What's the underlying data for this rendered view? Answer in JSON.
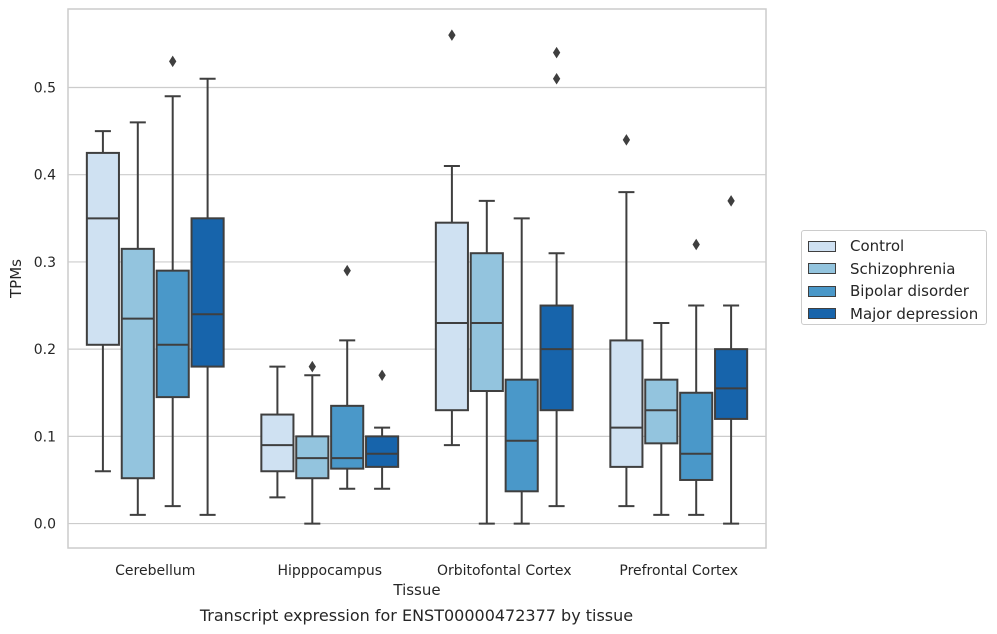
{
  "chart_data": {
    "type": "box",
    "title": "",
    "caption": "Transcript expression for ENST00000472377 by tissue",
    "xlabel": "Tissue",
    "ylabel": "TPMs",
    "ylim": [
      -0.028,
      0.59
    ],
    "yticks": [
      "0.0",
      "0.1",
      "0.2",
      "0.3",
      "0.4",
      "0.5"
    ],
    "grid": "horizontal",
    "legend_position": "right",
    "categories": [
      "Cerebellum",
      "Hipppocampus",
      "Orbitofontal Cortex",
      "Prefrontal Cortex"
    ],
    "series": [
      {
        "name": "Control",
        "color": "#cfe1f2",
        "boxes": [
          {
            "whislo": 0.06,
            "q1": 0.205,
            "med": 0.35,
            "q3": 0.425,
            "whishi": 0.45,
            "fliers": []
          },
          {
            "whislo": 0.03,
            "q1": 0.06,
            "med": 0.09,
            "q3": 0.125,
            "whishi": 0.18,
            "fliers": []
          },
          {
            "whislo": 0.09,
            "q1": 0.13,
            "med": 0.23,
            "q3": 0.345,
            "whishi": 0.41,
            "fliers": [
              0.56
            ]
          },
          {
            "whislo": 0.02,
            "q1": 0.065,
            "med": 0.11,
            "q3": 0.21,
            "whishi": 0.38,
            "fliers": [
              0.44
            ]
          }
        ]
      },
      {
        "name": "Schizophrenia",
        "color": "#93c4de",
        "boxes": [
          {
            "whislo": 0.01,
            "q1": 0.052,
            "med": 0.235,
            "q3": 0.315,
            "whishi": 0.46,
            "fliers": []
          },
          {
            "whislo": 0.0,
            "q1": 0.052,
            "med": 0.075,
            "q3": 0.1,
            "whishi": 0.17,
            "fliers": [
              0.18
            ]
          },
          {
            "whislo": 0.0,
            "q1": 0.152,
            "med": 0.23,
            "q3": 0.31,
            "whishi": 0.37,
            "fliers": []
          },
          {
            "whislo": 0.01,
            "q1": 0.092,
            "med": 0.13,
            "q3": 0.165,
            "whishi": 0.23,
            "fliers": []
          }
        ]
      },
      {
        "name": "Bipolar disorder",
        "color": "#4a98c9",
        "boxes": [
          {
            "whislo": 0.02,
            "q1": 0.145,
            "med": 0.205,
            "q3": 0.29,
            "whishi": 0.49,
            "fliers": [
              0.53
            ]
          },
          {
            "whislo": 0.04,
            "q1": 0.063,
            "med": 0.075,
            "q3": 0.135,
            "whishi": 0.21,
            "fliers": [
              0.29
            ]
          },
          {
            "whislo": 0.0,
            "q1": 0.037,
            "med": 0.095,
            "q3": 0.165,
            "whishi": 0.35,
            "fliers": []
          },
          {
            "whislo": 0.01,
            "q1": 0.05,
            "med": 0.08,
            "q3": 0.15,
            "whishi": 0.25,
            "fliers": [
              0.32
            ]
          }
        ]
      },
      {
        "name": "Major depression",
        "color": "#1764ab",
        "boxes": [
          {
            "whislo": 0.01,
            "q1": 0.18,
            "med": 0.24,
            "q3": 0.35,
            "whishi": 0.51,
            "fliers": []
          },
          {
            "whislo": 0.04,
            "q1": 0.065,
            "med": 0.08,
            "q3": 0.1,
            "whishi": 0.11,
            "fliers": [
              0.17
            ]
          },
          {
            "whislo": 0.02,
            "q1": 0.13,
            "med": 0.2,
            "q3": 0.25,
            "whishi": 0.31,
            "fliers": [
              0.51,
              0.54
            ]
          },
          {
            "whislo": 0.0,
            "q1": 0.12,
            "med": 0.155,
            "q3": 0.2,
            "whishi": 0.25,
            "fliers": [
              0.37
            ]
          }
        ]
      }
    ]
  }
}
